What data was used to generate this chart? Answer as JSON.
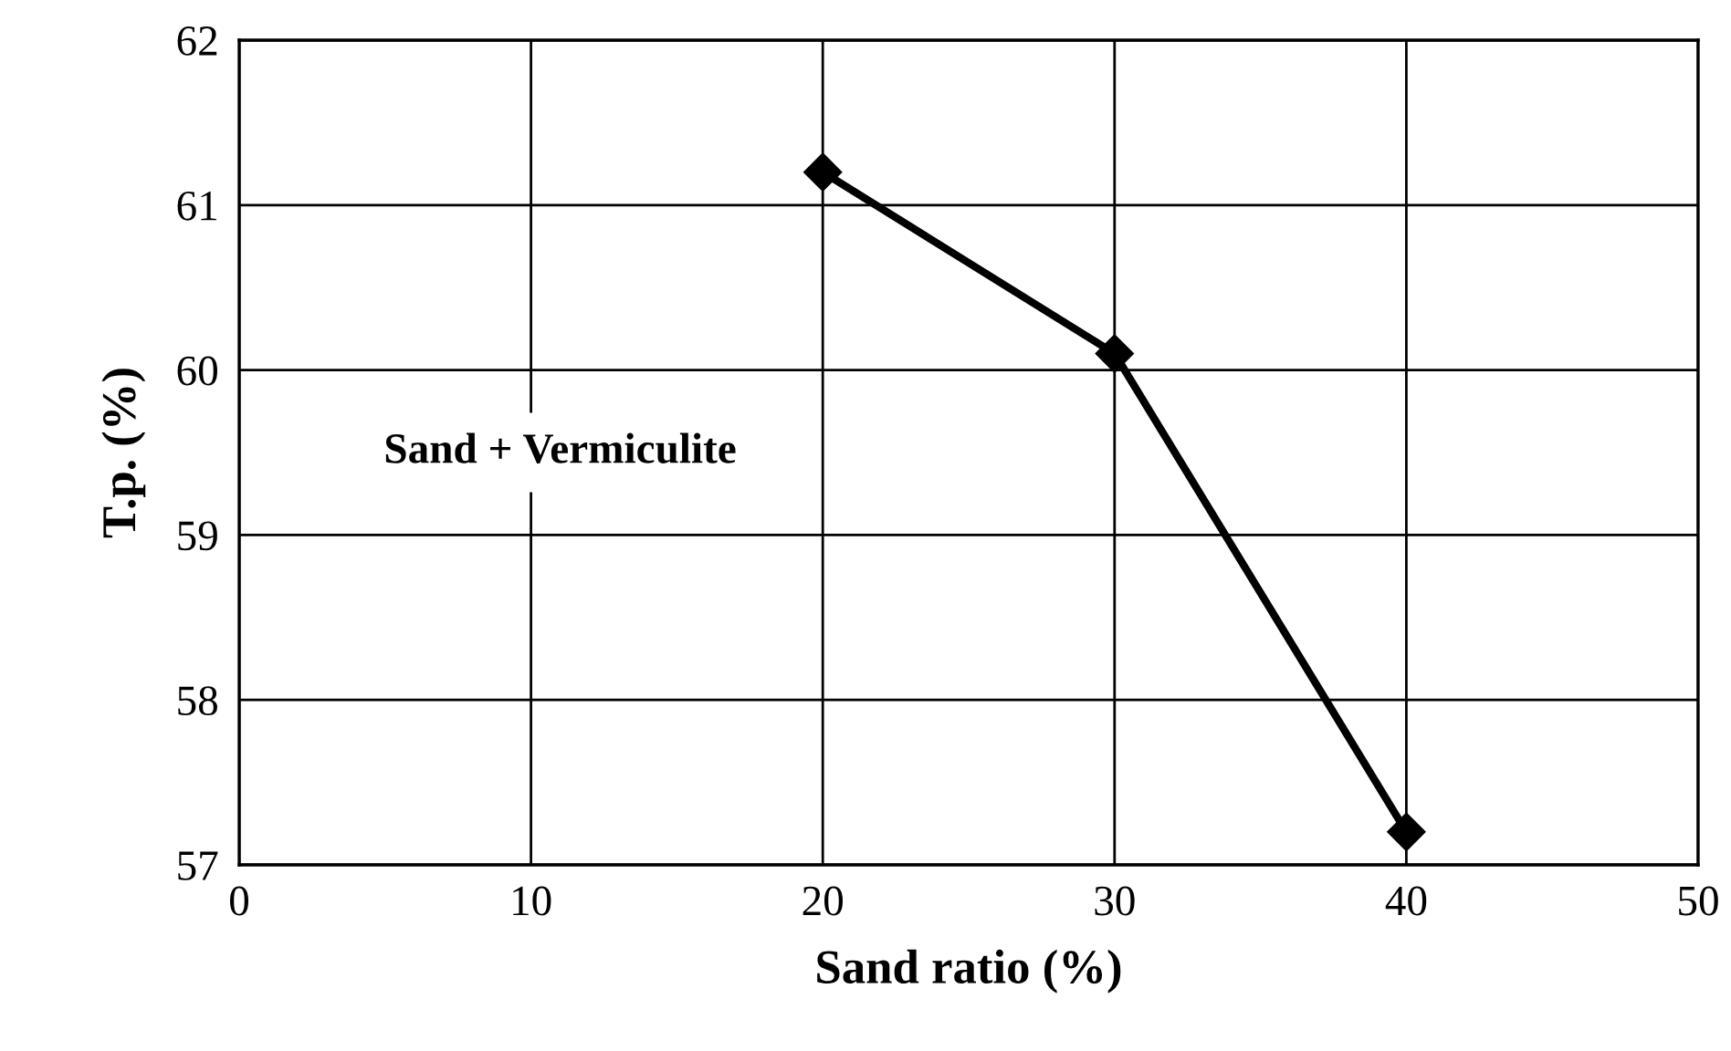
{
  "chart_data": {
    "type": "line",
    "xlabel": "Sand ratio (%)",
    "ylabel": "T.p. (%)",
    "x": [
      20,
      30,
      40
    ],
    "series": [
      {
        "color": "#000000",
        "values": [
          61.2,
          60.1,
          57.2
        ]
      }
    ],
    "xlim": [
      0,
      50
    ],
    "xticks": [
      0,
      10,
      20,
      30,
      40,
      50
    ],
    "ylim": [
      57,
      62
    ],
    "yticks": [
      57,
      58,
      59,
      60,
      61,
      62
    ],
    "grid": true,
    "marker": "diamond",
    "line_style": "solid",
    "annotations": [
      "Sand + Vermiculite"
    ]
  }
}
